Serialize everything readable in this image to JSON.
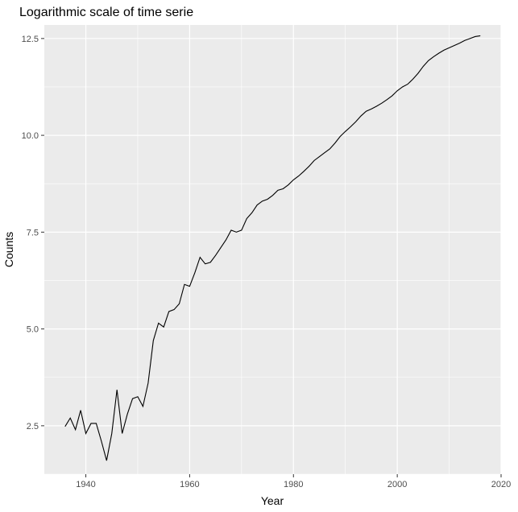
{
  "chart_data": {
    "type": "line",
    "title": "Logarithmic scale of time serie",
    "xlabel": "Year",
    "ylabel": "Counts",
    "xlim": [
      1932,
      2020
    ],
    "ylim": [
      1.25,
      12.85
    ],
    "x_ticks": [
      1940,
      1960,
      1980,
      2000,
      2020
    ],
    "x_tick_labels": [
      "1940",
      "1960",
      "1980",
      "2000",
      "2020"
    ],
    "y_ticks": [
      2.5,
      5.0,
      7.5,
      10.0,
      12.5
    ],
    "y_tick_labels": [
      "2.5",
      "5.0",
      "7.5",
      "10.0",
      "12.5"
    ],
    "grid": true,
    "colors": {
      "panel": "#ebebeb",
      "grid": "#ffffff",
      "line": "#000000",
      "tick": "#333333"
    },
    "series": [
      {
        "x": [
          1936,
          1937,
          1938,
          1939,
          1940,
          1941,
          1942,
          1943,
          1944,
          1945,
          1946,
          1947,
          1948,
          1949,
          1950,
          1951,
          1952,
          1953,
          1954,
          1955,
          1956,
          1957,
          1958,
          1959,
          1960,
          1961,
          1962,
          1963,
          1964,
          1965,
          1966,
          1967,
          1968,
          1969,
          1970,
          1971,
          1972,
          1973,
          1974,
          1975,
          1976,
          1977,
          1978,
          1979,
          1980,
          1981,
          1982,
          1983,
          1984,
          1985,
          1986,
          1987,
          1988,
          1989,
          1990,
          1991,
          1992,
          1993,
          1994,
          1995,
          1996,
          1997,
          1998,
          1999,
          2000,
          2001,
          2002,
          2003,
          2004,
          2005,
          2006,
          2007,
          2008,
          2009,
          2010,
          2011,
          2012,
          2013,
          2014,
          2015,
          2016
        ],
        "y": [
          2.48,
          2.7,
          2.4,
          2.9,
          2.3,
          2.56,
          2.56,
          2.1,
          1.6,
          2.3,
          3.43,
          2.3,
          2.8,
          3.2,
          3.25,
          3.0,
          3.6,
          4.7,
          5.15,
          5.05,
          5.45,
          5.5,
          5.65,
          6.15,
          6.1,
          6.45,
          6.85,
          6.68,
          6.72,
          6.9,
          7.1,
          7.3,
          7.55,
          7.5,
          7.55,
          7.85,
          8.0,
          8.2,
          8.3,
          8.35,
          8.45,
          8.58,
          8.62,
          8.72,
          8.85,
          8.95,
          9.07,
          9.2,
          9.35,
          9.45,
          9.55,
          9.65,
          9.8,
          9.97,
          10.1,
          10.22,
          10.35,
          10.5,
          10.62,
          10.68,
          10.75,
          10.83,
          10.92,
          11.02,
          11.15,
          11.25,
          11.32,
          11.45,
          11.6,
          11.78,
          11.93,
          12.03,
          12.12,
          12.2,
          12.26,
          12.32,
          12.38,
          12.45,
          12.5,
          12.55,
          12.57
        ]
      }
    ]
  }
}
